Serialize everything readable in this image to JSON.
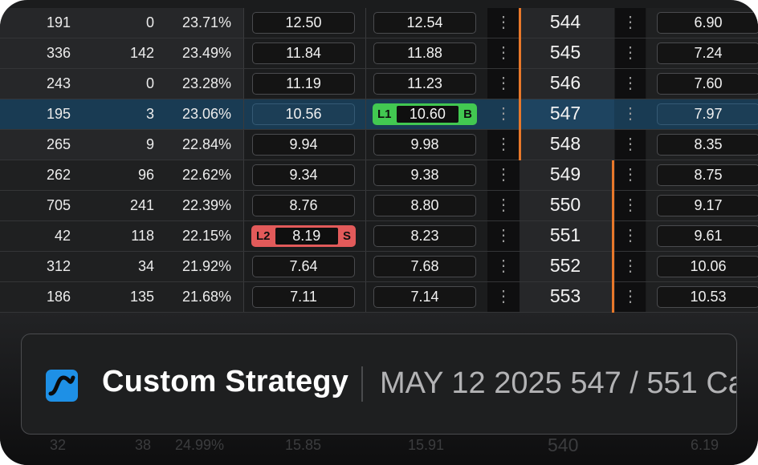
{
  "rows": [
    {
      "vol": "191",
      "oi": "0",
      "iv": "23.71%",
      "bid": "12.50",
      "ask": "12.54",
      "strike": "544",
      "right": "6.90"
    },
    {
      "vol": "336",
      "oi": "142",
      "iv": "23.49%",
      "bid": "11.84",
      "ask": "11.88",
      "strike": "545",
      "right": "7.24"
    },
    {
      "vol": "243",
      "oi": "0",
      "iv": "23.28%",
      "bid": "11.19",
      "ask": "11.23",
      "strike": "546",
      "right": "7.60"
    },
    {
      "vol": "195",
      "oi": "3",
      "iv": "23.06%",
      "bid": "10.56",
      "ask": "",
      "strike": "547",
      "right": "7.97"
    },
    {
      "vol": "265",
      "oi": "9",
      "iv": "22.84%",
      "bid": "9.94",
      "ask": "9.98",
      "strike": "548",
      "right": "8.35"
    },
    {
      "vol": "262",
      "oi": "96",
      "iv": "22.62%",
      "bid": "9.34",
      "ask": "9.38",
      "strike": "549",
      "right": "8.75"
    },
    {
      "vol": "705",
      "oi": "241",
      "iv": "22.39%",
      "bid": "8.76",
      "ask": "8.80",
      "strike": "550",
      "right": "9.17"
    },
    {
      "vol": "42",
      "oi": "118",
      "iv": "22.15%",
      "bid": "",
      "ask": "8.23",
      "strike": "551",
      "right": "9.61"
    },
    {
      "vol": "312",
      "oi": "34",
      "iv": "21.92%",
      "bid": "7.64",
      "ask": "7.68",
      "strike": "552",
      "right": "10.06"
    },
    {
      "vol": "186",
      "oi": "135",
      "iv": "21.68%",
      "bid": "7.11",
      "ask": "7.14",
      "strike": "553",
      "right": "10.53"
    }
  ],
  "menu_glyph": "⋮",
  "orders": {
    "buy": {
      "leg": "L1",
      "price": "10.60",
      "side": "B",
      "color": "#42c851"
    },
    "sell": {
      "leg": "L2",
      "price": "8.19",
      "side": "S",
      "color": "#e25a5a"
    }
  },
  "ghost_row": {
    "vol": "32",
    "oi": "38",
    "iv": "24.99%",
    "bid": "15.85",
    "ask": "15.91",
    "strike": "540",
    "right": "6.19"
  },
  "strategy": {
    "title": "Custom Strategy",
    "description": "MAY 12 2025 547 / 551 Ca",
    "icon": "strategy-logo-icon"
  },
  "colors": {
    "accent_orange": "#e8782a",
    "selected_row": "#193b53",
    "brand_blue": "#1e90e6"
  }
}
